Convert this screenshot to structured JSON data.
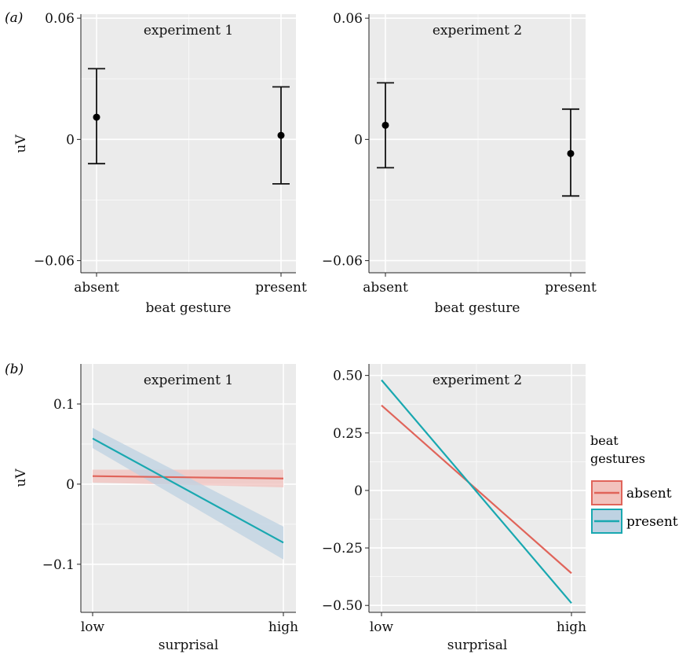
{
  "panel_a": {
    "label": "(a)"
  },
  "panel_b": {
    "label": "(b)"
  },
  "chart_data": [
    {
      "type": "scatter",
      "panel": "a",
      "facet": "experiment 1",
      "categories": [
        "absent",
        "present"
      ],
      "xlabel": "beat gesture",
      "ylabel": "uV",
      "ylim": [
        -0.066,
        0.062
      ],
      "yticks": [
        {
          "v": 0.06,
          "label": "0.06"
        },
        {
          "v": 0,
          "label": "0"
        },
        {
          "v": -0.06,
          "label": "−0.06"
        }
      ],
      "series": [
        {
          "values": [
            0.011,
            0.002
          ],
          "lower": [
            -0.012,
            -0.022
          ],
          "upper": [
            0.035,
            0.026
          ]
        }
      ],
      "grid": true
    },
    {
      "type": "scatter",
      "panel": "a",
      "facet": "experiment 2",
      "categories": [
        "absent",
        "present"
      ],
      "xlabel": "beat gesture",
      "ylabel": "",
      "ylim": [
        -0.066,
        0.062
      ],
      "yticks": [
        {
          "v": 0.06,
          "label": "0.06"
        },
        {
          "v": 0,
          "label": "0"
        },
        {
          "v": -0.06,
          "label": "−0.06"
        }
      ],
      "series": [
        {
          "values": [
            0.007,
            -0.007
          ],
          "lower": [
            -0.014,
            -0.028
          ],
          "upper": [
            0.028,
            0.015
          ]
        }
      ],
      "grid": true
    },
    {
      "type": "line",
      "panel": "b",
      "facet": "experiment 1",
      "categories": [
        "low",
        "high"
      ],
      "xlabel": "surprisal",
      "ylabel": "uV",
      "ylim": [
        -0.16,
        0.15
      ],
      "yticks": [
        {
          "v": 0.1,
          "label": "0.1"
        },
        {
          "v": 0,
          "label": "0"
        },
        {
          "v": -0.1,
          "label": "−0.1"
        }
      ],
      "series": [
        {
          "name": "absent",
          "values": [
            0.01,
            0.007
          ],
          "lower": [
            0.002,
            -0.004
          ],
          "upper": [
            0.018,
            0.018
          ]
        },
        {
          "name": "present",
          "values": [
            0.057,
            -0.073
          ],
          "lower": [
            0.045,
            -0.094
          ],
          "upper": [
            0.07,
            -0.053
          ]
        }
      ],
      "grid": true
    },
    {
      "type": "line",
      "panel": "b",
      "facet": "experiment 2",
      "categories": [
        "low",
        "high"
      ],
      "xlabel": "surprisal",
      "ylabel": "",
      "ylim": [
        -0.53,
        0.55
      ],
      "yticks": [
        {
          "v": 0.5,
          "label": "0.50"
        },
        {
          "v": 0.25,
          "label": "0.25"
        },
        {
          "v": 0,
          "label": "0"
        },
        {
          "v": -0.25,
          "label": "−0.25"
        },
        {
          "v": -0.5,
          "label": "−0.50"
        }
      ],
      "series": [
        {
          "name": "absent",
          "values": [
            0.37,
            -0.36
          ]
        },
        {
          "name": "present",
          "values": [
            0.48,
            -0.49
          ]
        }
      ],
      "grid": true
    }
  ],
  "legend": {
    "title_line1": "beat",
    "title_line2": "gestures",
    "entries": [
      {
        "name": "absent",
        "color": "#e0645a"
      },
      {
        "name": "present",
        "color": "#19a8b0"
      }
    ]
  },
  "colors": {
    "panel_bg": "#ebebeb",
    "grid": "#ffffff",
    "absent": "#e0645a",
    "present": "#19a8b0",
    "absent_ribbon": "#f2c2bd",
    "present_ribbon": "#bed2e2",
    "point": "#000000"
  }
}
